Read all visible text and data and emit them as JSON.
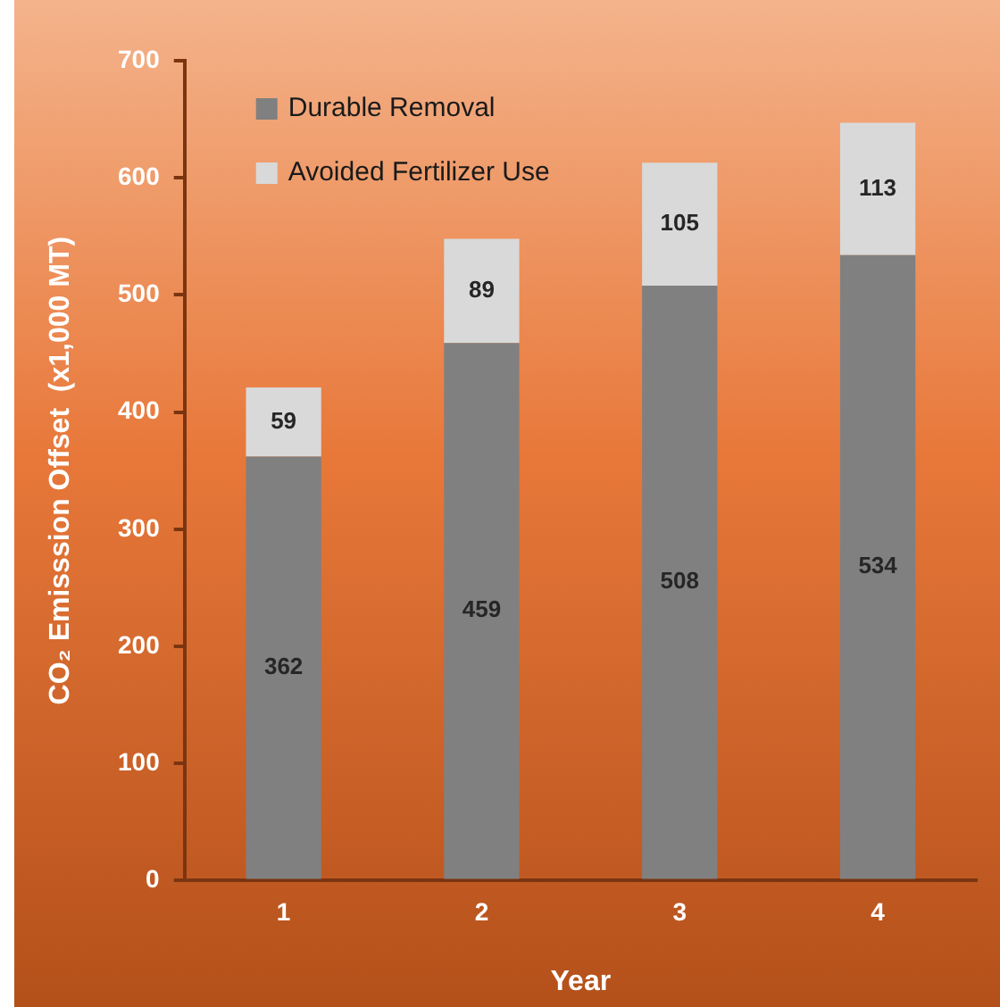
{
  "chart_data": {
    "type": "bar",
    "xlabel": "Year",
    "ylabel": "CO₂ Emisssion Offset  (x1,000 MT)",
    "categories": [
      "1",
      "2",
      "3",
      "4"
    ],
    "series": [
      {
        "name": "Durable Removal",
        "color": "#808080",
        "values": [
          362,
          459,
          508,
          534
        ]
      },
      {
        "name": "Avoided Fertilizer Use",
        "color": "#d9d9d9",
        "values": [
          59,
          89,
          105,
          113
        ]
      }
    ],
    "stacked": true,
    "ylim": [
      0,
      700
    ],
    "yticks": [
      0,
      100,
      200,
      300,
      400,
      500,
      600,
      700
    ],
    "grid": false,
    "legend": "top left",
    "data_labels": true
  }
}
